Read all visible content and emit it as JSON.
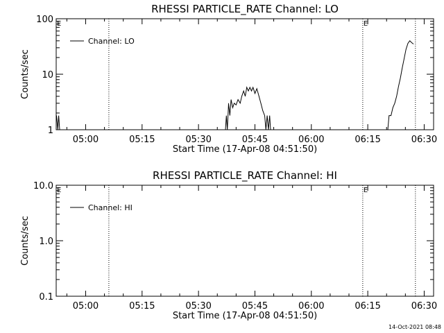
{
  "footer_timestamp": "14-Oct-2021 08:48",
  "colors": {
    "background": "#ffffff",
    "foreground": "#000000"
  },
  "chart_data": [
    {
      "type": "line",
      "title": "RHESSI PARTICLE_RATE Channel: LO",
      "xlabel": "Start Time (17-Apr-08 04:51:50)",
      "ylabel": "Counts/sec",
      "y_scale": "log",
      "ylim": [
        1,
        100
      ],
      "xlim": [
        "04:52:10",
        "06:32:30"
      ],
      "x_ticks": [
        "05:00",
        "05:15",
        "05:30",
        "05:45",
        "06:00",
        "06:15",
        "06:30"
      ],
      "y_ticks": [
        {
          "value": 1,
          "label": "1"
        },
        {
          "value": 10,
          "label": "10"
        },
        {
          "value": 100,
          "label": "100"
        }
      ],
      "legend": {
        "entries": [
          "Channel: LO"
        ],
        "placement": "top-left"
      },
      "vertical_dotted_lines": [
        "05:06:10",
        "06:13:40",
        "06:27:40"
      ],
      "flags": [
        {
          "label": "E",
          "x": "04:52:10"
        },
        {
          "label": "E",
          "x": "06:13:40"
        }
      ],
      "series": [
        {
          "name": "Channel: LO",
          "segments": [
            [
              {
                "t": "04:52:15",
                "y": 1.8
              },
              {
                "t": "04:52:35",
                "y": 1.0
              },
              {
                "t": "04:52:50",
                "y": 1.8
              },
              {
                "t": "04:53:05",
                "y": 1.0
              }
            ],
            [
              {
                "t": "05:37:10",
                "y": 1.0
              },
              {
                "t": "05:37:25",
                "y": 1.8
              },
              {
                "t": "05:37:40",
                "y": 1.0
              },
              {
                "t": "05:38:00",
                "y": 3.0
              },
              {
                "t": "05:38:20",
                "y": 1.8
              },
              {
                "t": "05:38:40",
                "y": 3.5
              },
              {
                "t": "05:39:05",
                "y": 2.5
              },
              {
                "t": "05:39:30",
                "y": 3.0
              },
              {
                "t": "05:40:00",
                "y": 2.8
              },
              {
                "t": "05:40:30",
                "y": 3.5
              },
              {
                "t": "05:41:05",
                "y": 3.0
              },
              {
                "t": "05:41:30",
                "y": 4.0
              },
              {
                "t": "05:42:00",
                "y": 5.0
              },
              {
                "t": "05:42:25",
                "y": 4.0
              },
              {
                "t": "05:42:50",
                "y": 5.8
              },
              {
                "t": "05:43:15",
                "y": 5.0
              },
              {
                "t": "05:43:40",
                "y": 5.8
              },
              {
                "t": "05:44:05",
                "y": 5.0
              },
              {
                "t": "05:44:30",
                "y": 5.8
              },
              {
                "t": "05:45:00",
                "y": 4.5
              },
              {
                "t": "05:45:30",
                "y": 5.5
              },
              {
                "t": "05:46:05",
                "y": 4.0
              },
              {
                "t": "05:46:35",
                "y": 3.0
              },
              {
                "t": "05:47:05",
                "y": 2.2
              },
              {
                "t": "05:47:35",
                "y": 1.8
              },
              {
                "t": "05:47:55",
                "y": 1.0
              },
              {
                "t": "05:48:15",
                "y": 1.8
              },
              {
                "t": "05:48:35",
                "y": 1.0
              },
              {
                "t": "05:48:55",
                "y": 1.8
              },
              {
                "t": "05:49:10",
                "y": 1.0
              }
            ],
            [
              {
                "t": "06:20:20",
                "y": 1.0
              },
              {
                "t": "06:20:40",
                "y": 1.8
              },
              {
                "t": "06:21:10",
                "y": 1.8
              },
              {
                "t": "06:21:40",
                "y": 2.5
              },
              {
                "t": "06:22:10",
                "y": 3.0
              },
              {
                "t": "06:22:40",
                "y": 4.0
              },
              {
                "t": "06:23:10",
                "y": 6.0
              },
              {
                "t": "06:23:40",
                "y": 8.5
              },
              {
                "t": "06:24:10",
                "y": 13.0
              },
              {
                "t": "06:24:40",
                "y": 19.0
              },
              {
                "t": "06:25:10",
                "y": 28.0
              },
              {
                "t": "06:25:40",
                "y": 36.0
              },
              {
                "t": "06:26:10",
                "y": 40.0
              },
              {
                "t": "06:26:40",
                "y": 37.0
              },
              {
                "t": "06:27:10",
                "y": 35.0
              }
            ]
          ]
        }
      ]
    },
    {
      "type": "line",
      "title": "RHESSI PARTICLE_RATE Channel: HI",
      "xlabel": "Start Time (17-Apr-08 04:51:50)",
      "ylabel": "Counts/sec",
      "y_scale": "log",
      "ylim": [
        0.1,
        10
      ],
      "xlim": [
        "04:52:10",
        "06:32:30"
      ],
      "x_ticks": [
        "05:00",
        "05:15",
        "05:30",
        "05:45",
        "06:00",
        "06:15",
        "06:30"
      ],
      "y_ticks": [
        {
          "value": 0.1,
          "label": "0.1"
        },
        {
          "value": 1,
          "label": "1.0"
        },
        {
          "value": 10,
          "label": "10.0"
        }
      ],
      "legend": {
        "entries": [
          "Channel: HI"
        ],
        "placement": "top-left"
      },
      "vertical_dotted_lines": [
        "05:06:10",
        "06:13:40",
        "06:27:40"
      ],
      "flags": [
        {
          "label": "E",
          "x": "04:52:10"
        },
        {
          "label": "E",
          "x": "06:13:40"
        }
      ],
      "series": [
        {
          "name": "Channel: HI",
          "segments": []
        }
      ]
    }
  ]
}
